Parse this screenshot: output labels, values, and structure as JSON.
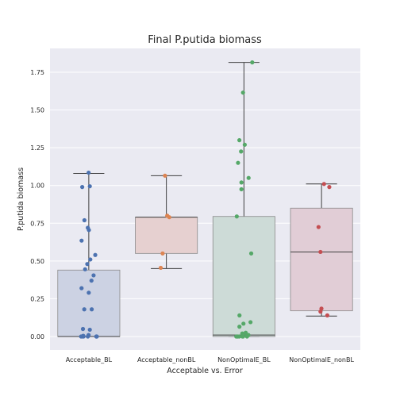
{
  "chart_data": {
    "type": "box",
    "title": "Final P.putida biomass",
    "xlabel": "Acceptable vs. Error",
    "ylabel": "P.putida biomass",
    "ylim": [
      -0.09,
      1.9
    ],
    "yticks": [
      "0.00",
      "0.25",
      "0.50",
      "0.75",
      "1.00",
      "1.25",
      "1.50",
      "1.75"
    ],
    "grid": true,
    "categories": [
      "Acceptable_BL",
      "Acceptable_nonBL",
      "NonOptimalE_BL",
      "NonOptimalE_nonBL"
    ],
    "colors": [
      "#4c72b0",
      "#dd8452",
      "#55a868",
      "#c44e52"
    ],
    "box_fill_colors": [
      "#ccd2e3",
      "#e6d0d0",
      "#cddbd7",
      "#e1cdd6"
    ],
    "background": "#eaeaf2",
    "boxes": [
      {
        "category": "Acceptable_BL",
        "whisker_low": 0.0,
        "q1": 0.0,
        "median": 0.0,
        "q3": 0.44,
        "whisker_high": 1.08
      },
      {
        "category": "Acceptable_nonBL",
        "whisker_low": 0.45,
        "q1": 0.55,
        "median": 0.79,
        "q3": 0.79,
        "whisker_high": 1.065
      },
      {
        "category": "NonOptimalE_BL",
        "whisker_low": 0.0,
        "q1": 0.0,
        "median": 0.01,
        "q3": 0.795,
        "whisker_high": 1.815
      },
      {
        "category": "NonOptimalE_nonBL",
        "whisker_low": 0.135,
        "q1": 0.17,
        "median": 0.56,
        "q3": 0.85,
        "whisker_high": 1.01
      }
    ],
    "points": [
      {
        "category": "Acceptable_BL",
        "values": [
          1.085,
          0.995,
          0.99,
          0.77,
          0.72,
          0.705,
          0.635,
          0.54,
          0.51,
          0.48,
          0.445,
          0.405,
          0.37,
          0.32,
          0.29,
          0.18,
          0.18,
          0.05,
          0.045,
          0.01,
          0.005,
          0.0,
          0.0,
          0.0,
          0.0,
          0.0,
          0.0,
          0.0
        ]
      },
      {
        "category": "Acceptable_nonBL",
        "values": [
          1.065,
          0.8,
          0.79,
          0.55,
          0.455
        ]
      },
      {
        "category": "NonOptimalE_BL",
        "values": [
          1.815,
          1.615,
          1.3,
          1.27,
          1.225,
          1.15,
          1.05,
          1.02,
          0.975,
          0.795,
          0.55,
          0.14,
          0.095,
          0.085,
          0.065,
          0.025,
          0.02,
          0.01,
          0.005,
          0.0,
          0.0,
          0.0,
          0.0,
          0.0,
          0.0,
          0.0
        ]
      },
      {
        "category": "NonOptimalE_nonBL",
        "values": [
          1.01,
          0.99,
          0.725,
          0.56,
          0.185,
          0.165,
          0.14
        ]
      }
    ]
  }
}
